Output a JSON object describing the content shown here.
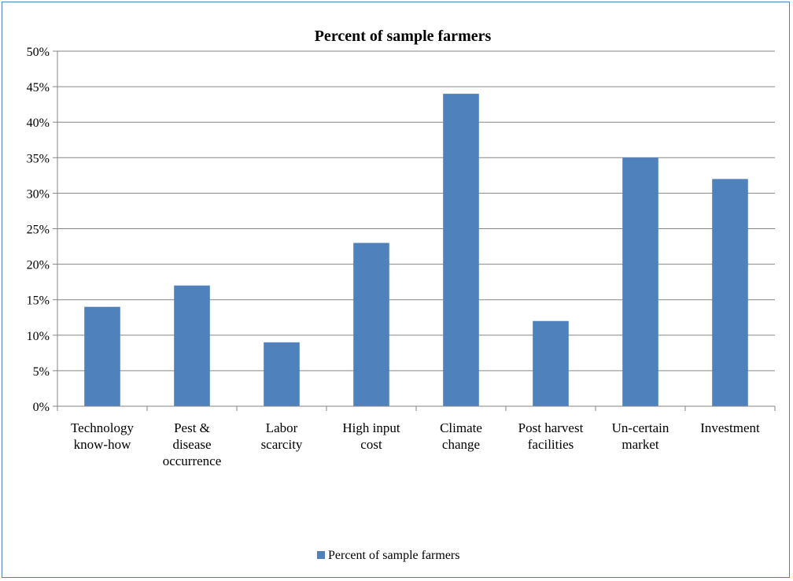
{
  "chart_data": {
    "type": "bar",
    "title": "Percent of sample farmers",
    "categories": [
      [
        "Technology",
        "know-how"
      ],
      [
        "Pest &",
        "disease",
        "occurrence"
      ],
      [
        "Labor",
        "scarcity"
      ],
      [
        "High input",
        "cost"
      ],
      [
        "Climate",
        "change"
      ],
      [
        "Post harvest",
        "facilities"
      ],
      [
        "Un-certain",
        "market"
      ],
      [
        "Investment"
      ]
    ],
    "series": [
      {
        "name": "Percent of sample farmers",
        "values": [
          14,
          17,
          9,
          23,
          44,
          12,
          35,
          32
        ],
        "color": "#4f81bd"
      }
    ],
    "ylim": [
      0,
      50
    ],
    "yticks": [
      "0%",
      "5%",
      "10%",
      "15%",
      "20%",
      "25%",
      "30%",
      "35%",
      "40%",
      "45%",
      "50%"
    ],
    "grid": true,
    "legend_position": "bottom"
  }
}
